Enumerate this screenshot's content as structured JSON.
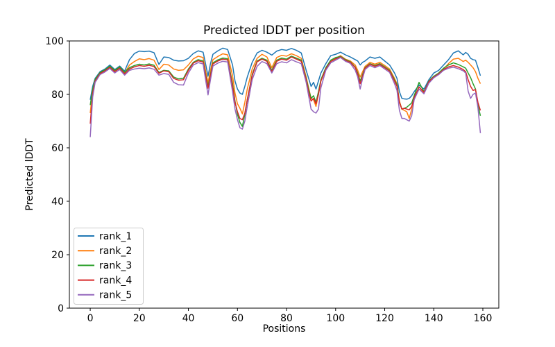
{
  "chart_data": {
    "type": "line",
    "title": "Predicted lDDT per position",
    "xlabel": "Positions",
    "ylabel": "Predicted lDDT",
    "xlim": [
      -8.5,
      166.5
    ],
    "ylim": [
      0,
      100
    ],
    "xticks": [
      0,
      20,
      40,
      60,
      80,
      100,
      120,
      140,
      160
    ],
    "yticks": [
      0,
      20,
      40,
      60,
      80,
      100
    ],
    "grid": false,
    "legend_position": "lower left",
    "line_width": 1.5,
    "x": [
      0,
      1,
      2,
      4,
      6,
      8,
      10,
      12,
      14,
      16,
      18,
      20,
      22,
      24,
      26,
      28,
      30,
      32,
      34,
      36,
      38,
      40,
      42,
      44,
      46,
      47,
      48,
      49,
      50,
      52,
      54,
      56,
      58,
      59,
      60,
      61,
      62,
      63,
      64,
      66,
      68,
      70,
      72,
      74,
      76,
      78,
      80,
      82,
      84,
      86,
      88,
      89,
      90,
      91,
      92,
      93,
      94,
      96,
      98,
      100,
      102,
      104,
      106,
      108,
      109,
      110,
      111,
      112,
      114,
      116,
      118,
      120,
      122,
      124,
      125,
      126,
      127,
      128,
      129,
      130,
      131,
      132,
      134,
      136,
      138,
      140,
      142,
      144,
      146,
      148,
      150,
      152,
      153,
      154,
      155,
      156,
      157,
      158,
      159
    ],
    "series": [
      {
        "name": "rank_1",
        "color": "#1f77b4",
        "values": [
          78,
          83,
          86,
          88.5,
          89.5,
          91,
          89.3,
          90.6,
          88.7,
          93,
          95.3,
          96.2,
          96,
          96.2,
          95.6,
          91.2,
          94,
          93.8,
          92.8,
          92.5,
          92.6,
          93.5,
          95.3,
          96.3,
          95.8,
          91.5,
          86.8,
          91.5,
          95,
          96.3,
          97.3,
          96.8,
          91,
          85,
          82,
          80.5,
          80,
          83,
          86.5,
          92,
          95.5,
          96.5,
          95.8,
          94.7,
          96.2,
          96.8,
          96.5,
          97.2,
          96.5,
          95.5,
          89,
          86,
          83,
          84.5,
          82,
          85,
          88,
          91.5,
          94.5,
          95,
          95.8,
          94.8,
          94,
          93,
          92.5,
          91,
          92,
          92.5,
          94,
          93.5,
          94,
          92.5,
          91,
          88,
          86,
          81,
          78.5,
          78.3,
          78.2,
          78.5,
          79.5,
          81,
          83.5,
          82,
          85.5,
          88,
          89,
          91,
          93,
          95.5,
          96.3,
          94.8,
          95.7,
          95,
          93.5,
          93,
          92.8,
          90,
          87
        ]
      },
      {
        "name": "rank_2",
        "color": "#ff7f0e",
        "values": [
          73,
          81.5,
          85.3,
          88,
          89,
          90.3,
          88.7,
          90,
          88,
          91,
          92.3,
          93.3,
          93,
          93.4,
          92.8,
          89.3,
          91.3,
          91,
          89.5,
          89,
          89.2,
          91,
          93.3,
          94.3,
          93.8,
          89,
          84.3,
          89,
          93,
          94.2,
          95.2,
          94.8,
          87,
          80.5,
          76.5,
          74.8,
          72.7,
          77,
          82,
          89.5,
          93.5,
          95,
          94,
          90,
          93.8,
          94.6,
          94.3,
          95.2,
          94.5,
          93.5,
          86.5,
          82.5,
          78.5,
          78,
          75.5,
          80,
          85,
          89.5,
          92.5,
          93.5,
          94.5,
          93.2,
          92.5,
          91,
          89,
          86.5,
          88.5,
          90.5,
          92,
          91.3,
          92,
          90.8,
          89.5,
          86,
          84,
          77.5,
          74.5,
          74,
          73.5,
          71,
          74.5,
          78.5,
          82,
          80.5,
          84.5,
          86.3,
          87.8,
          89.5,
          91.5,
          93.2,
          93.5,
          92.3,
          92.8,
          92,
          91,
          90,
          88.5,
          86,
          84
        ]
      },
      {
        "name": "rank_3",
        "color": "#2ca02c",
        "values": [
          76,
          82,
          85.6,
          88.2,
          89.2,
          90.6,
          89,
          90.3,
          88.3,
          90,
          90.8,
          91.3,
          91,
          91.4,
          90.9,
          88.2,
          89,
          88.8,
          86.5,
          85.8,
          86,
          89.5,
          92,
          93,
          92.5,
          87.5,
          83,
          87.5,
          91.8,
          92.9,
          93.6,
          93.3,
          84,
          77.5,
          72.5,
          69.5,
          68,
          72.5,
          78,
          87.5,
          92.5,
          93.5,
          92.8,
          89,
          92.8,
          93.6,
          93.2,
          94.3,
          93.6,
          92.8,
          86,
          82,
          78.5,
          79.5,
          77,
          81,
          85.5,
          90,
          92.8,
          93.8,
          94.2,
          93,
          92.2,
          90.2,
          88,
          85,
          87.5,
          90,
          91.5,
          90.8,
          91.5,
          90.3,
          89,
          85.5,
          83.5,
          77,
          74.5,
          74.8,
          75.2,
          76,
          76.8,
          79.5,
          84.5,
          81,
          85,
          86.8,
          88,
          89.8,
          91,
          91.8,
          91.2,
          90.3,
          89.8,
          88,
          86.3,
          84,
          82,
          76,
          72
        ]
      },
      {
        "name": "rank_4",
        "color": "#d62728",
        "values": [
          69,
          80.5,
          85,
          87.8,
          88.8,
          90.1,
          88.5,
          89.8,
          87.7,
          89.5,
          90.3,
          90.8,
          90.5,
          90.9,
          90.4,
          87.9,
          88.8,
          88.5,
          86,
          85.3,
          85.5,
          89,
          91.7,
          92.6,
          92.1,
          87,
          82.3,
          87,
          91.4,
          92.5,
          93.2,
          92.9,
          83,
          77,
          73.5,
          71,
          70.5,
          73,
          78,
          87,
          92.2,
          93.2,
          92.4,
          88.5,
          92.4,
          93.2,
          92.8,
          94,
          93.2,
          92.4,
          85.5,
          81,
          77.5,
          78.5,
          76.5,
          80,
          85,
          89.5,
          92.3,
          93.3,
          94,
          92.7,
          92,
          90,
          87.5,
          84,
          87,
          89.8,
          91.3,
          90.5,
          91.2,
          90,
          88.7,
          85,
          83,
          77,
          74.5,
          74.8,
          74.5,
          74.2,
          75.5,
          78.8,
          82.8,
          80.8,
          84.8,
          86.5,
          87.7,
          89.3,
          90.3,
          90.8,
          90.2,
          89.3,
          88.5,
          85.5,
          83,
          81.5,
          81.8,
          77,
          74
        ]
      },
      {
        "name": "rank_5",
        "color": "#9467bd",
        "values": [
          64,
          79,
          84.5,
          87.4,
          88.4,
          89.7,
          88,
          89.3,
          87.2,
          89,
          89.5,
          89.8,
          89.6,
          89.9,
          89.4,
          87.2,
          87.8,
          87.5,
          84.5,
          83.6,
          83.5,
          88,
          91,
          91.9,
          91.4,
          85.5,
          79.8,
          85.5,
          90.6,
          91.7,
          92.4,
          92.1,
          81,
          74.5,
          70.5,
          67.5,
          67,
          70,
          75.5,
          85.5,
          90.5,
          92.3,
          91.5,
          88,
          91.5,
          92.2,
          91.8,
          93,
          92.2,
          91.5,
          84.5,
          79.5,
          74.5,
          73.5,
          73,
          74.5,
          82.5,
          89,
          91.8,
          92.8,
          93.8,
          92.4,
          91.6,
          89,
          86.5,
          82,
          86,
          89.3,
          90.8,
          90,
          90.8,
          89.5,
          88.2,
          84,
          81.5,
          74,
          71,
          71,
          70.5,
          70,
          72,
          78,
          82,
          80.2,
          84.2,
          86.2,
          87.4,
          89,
          89.8,
          90.2,
          89.6,
          88.8,
          88,
          81.2,
          78.5,
          80,
          80.5,
          75,
          65.5
        ]
      }
    ]
  },
  "legend": {
    "border_color": "#cccccc",
    "background": "#ffffff"
  },
  "axes": {
    "spine_color": "#000000",
    "background": "#ffffff"
  }
}
